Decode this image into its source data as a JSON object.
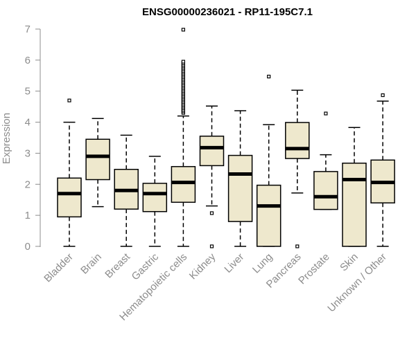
{
  "chart_data": {
    "type": "boxplot",
    "title": "ENSG00000236021 - RP11-195C7.1",
    "xlabel": "",
    "ylabel": "Expression",
    "ylim": [
      0,
      7
    ],
    "yticks": [
      0,
      1,
      2,
      3,
      4,
      5,
      6,
      7
    ],
    "box_color": "#eee8cd",
    "axis_color": "#8c8c8c",
    "categories": [
      "Bladder",
      "Brain",
      "Breast",
      "Gastric",
      "Hematopoietic cells",
      "Kidney",
      "Liver",
      "Lung",
      "Pancreas",
      "Prostate",
      "Skin",
      "Unknown / Other"
    ],
    "boxes": [
      {
        "name": "Bladder",
        "min": 0,
        "q1": 0.95,
        "median": 1.7,
        "q3": 2.2,
        "max": 4.0,
        "outliers": [
          4.7
        ]
      },
      {
        "name": "Brain",
        "min": 1.28,
        "q1": 2.15,
        "median": 2.9,
        "q3": 3.45,
        "max": 4.12,
        "outliers": []
      },
      {
        "name": "Breast",
        "min": 0,
        "q1": 1.2,
        "median": 1.8,
        "q3": 2.48,
        "max": 3.58,
        "outliers": []
      },
      {
        "name": "Gastric",
        "min": 0,
        "q1": 1.12,
        "median": 1.7,
        "q3": 2.03,
        "max": 2.9,
        "outliers": []
      },
      {
        "name": "Hematopoietic cells",
        "min": 0,
        "q1": 1.42,
        "median": 2.06,
        "q3": 2.57,
        "max": 4.2,
        "outliers": [
          4.3,
          4.35,
          4.4,
          4.45,
          4.5,
          4.55,
          4.6,
          4.65,
          4.7,
          4.75,
          4.8,
          4.85,
          4.9,
          4.95,
          5.0,
          5.05,
          5.1,
          5.15,
          5.2,
          5.25,
          5.3,
          5.35,
          5.4,
          5.45,
          5.5,
          5.55,
          5.6,
          5.65,
          5.7,
          5.75,
          5.8,
          5.85,
          5.9,
          5.95,
          6.98
        ]
      },
      {
        "name": "Kidney",
        "min": 1.3,
        "q1": 2.6,
        "median": 3.18,
        "q3": 3.55,
        "max": 4.52,
        "outliers": [
          1.07,
          0
        ]
      },
      {
        "name": "Liver",
        "min": 0,
        "q1": 0.8,
        "median": 2.33,
        "q3": 2.93,
        "max": 4.37,
        "outliers": []
      },
      {
        "name": "Lung",
        "min": 0,
        "q1": 0,
        "median": 1.3,
        "q3": 1.97,
        "max": 3.92,
        "outliers": [
          5.47
        ]
      },
      {
        "name": "Pancreas",
        "min": 1.72,
        "q1": 2.83,
        "median": 3.15,
        "q3": 3.99,
        "max": 5.03,
        "outliers": [
          0
        ]
      },
      {
        "name": "Prostate",
        "min": 1.19,
        "q1": 1.19,
        "median": 1.6,
        "q3": 2.41,
        "max": 2.95,
        "outliers": [
          4.28
        ]
      },
      {
        "name": "Skin",
        "min": 0,
        "q1": 0,
        "median": 2.15,
        "q3": 2.68,
        "max": 3.83,
        "outliers": []
      },
      {
        "name": "Unknown / Other",
        "min": 0,
        "q1": 1.4,
        "median": 2.06,
        "q3": 2.78,
        "max": 4.68,
        "outliers": [
          4.87
        ]
      }
    ]
  }
}
